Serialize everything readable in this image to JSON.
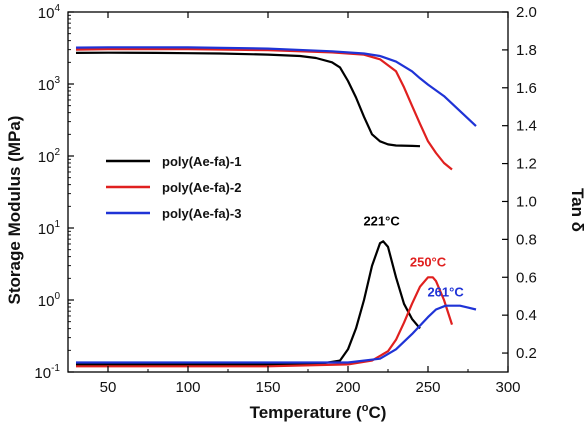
{
  "chart_data": {
    "type": "line",
    "xlabel": "Temperature (",
    "xlabel_sup": "o",
    "xlabel_end": "C)",
    "ylabel_left": "Storage Modulus (MPa)",
    "ylabel_right": "Tan δ",
    "x_ticks": [
      "50",
      "100",
      "150",
      "200",
      "250",
      "300"
    ],
    "x_tick_values": [
      50,
      100,
      150,
      200,
      250,
      300
    ],
    "xlim": [
      25,
      300
    ],
    "y_left_scale": "log",
    "y_left_ticks": [
      {
        "base": "10",
        "exp": "4",
        "value": 10000
      },
      {
        "base": "10",
        "exp": "3",
        "value": 1000
      },
      {
        "base": "10",
        "exp": "2",
        "value": 100
      },
      {
        "base": "10",
        "exp": "1",
        "value": 10
      },
      {
        "base": "10",
        "exp": "0",
        "value": 1
      },
      {
        "base": "10",
        "exp": "-1",
        "value": 0.1
      }
    ],
    "y_left_lim": [
      0.1,
      10000
    ],
    "y_right_ticks": [
      "2.0",
      "1.8",
      "1.6",
      "1.4",
      "1.2",
      "1.0",
      "0.8",
      "0.6",
      "0.4",
      "0.2"
    ],
    "y_right_tick_values": [
      2.0,
      1.8,
      1.6,
      1.4,
      1.2,
      1.0,
      0.8,
      0.6,
      0.4,
      0.2
    ],
    "y_right_lim": [
      0.1,
      2.0
    ],
    "legend_position": "left-middle",
    "grid": false,
    "series": [
      {
        "name": "poly(Ae-fa)-1",
        "color": "#000000",
        "storage_modulus": {
          "x": [
            30,
            50,
            80,
            100,
            120,
            150,
            170,
            180,
            190,
            195,
            200,
            205,
            210,
            215,
            220,
            225,
            230,
            240,
            245
          ],
          "y": [
            2700,
            2720,
            2700,
            2680,
            2650,
            2560,
            2450,
            2300,
            2000,
            1700,
            1100,
            650,
            350,
            200,
            160,
            145,
            140,
            138,
            137
          ]
        },
        "tan_delta": {
          "x": [
            30,
            100,
            150,
            180,
            195,
            200,
            205,
            210,
            215,
            220,
            222,
            225,
            230,
            235,
            240,
            245
          ],
          "y": [
            0.14,
            0.14,
            0.14,
            0.14,
            0.16,
            0.22,
            0.33,
            0.48,
            0.66,
            0.78,
            0.79,
            0.76,
            0.6,
            0.46,
            0.38,
            0.33
          ]
        }
      },
      {
        "name": "poly(Ae-fa)-2",
        "color": "#e0201f",
        "storage_modulus": {
          "x": [
            30,
            50,
            100,
            150,
            190,
            210,
            220,
            230,
            235,
            240,
            245,
            250,
            255,
            260,
            265
          ],
          "y": [
            3000,
            3050,
            3050,
            2950,
            2750,
            2550,
            2200,
            1500,
            900,
            500,
            280,
            160,
            110,
            80,
            65
          ]
        },
        "tan_delta": {
          "x": [
            30,
            100,
            150,
            200,
            215,
            225,
            230,
            235,
            240,
            245,
            250,
            253,
            255,
            260,
            265
          ],
          "y": [
            0.13,
            0.13,
            0.13,
            0.14,
            0.16,
            0.21,
            0.27,
            0.36,
            0.46,
            0.55,
            0.6,
            0.6,
            0.58,
            0.48,
            0.35
          ]
        }
      },
      {
        "name": "poly(Ae-fa)-3",
        "color": "#1f33d6",
        "storage_modulus": {
          "x": [
            30,
            50,
            100,
            150,
            190,
            210,
            220,
            230,
            240,
            245,
            250,
            260,
            270,
            280
          ],
          "y": [
            3200,
            3230,
            3220,
            3100,
            2850,
            2650,
            2450,
            2050,
            1500,
            1200,
            980,
            680,
            420,
            260
          ]
        },
        "tan_delta": {
          "x": [
            30,
            100,
            150,
            200,
            220,
            230,
            240,
            250,
            255,
            261,
            265,
            270,
            275,
            280
          ],
          "y": [
            0.15,
            0.15,
            0.15,
            0.15,
            0.17,
            0.22,
            0.3,
            0.39,
            0.43,
            0.45,
            0.45,
            0.45,
            0.44,
            0.43
          ]
        }
      }
    ],
    "annotations": [
      {
        "text": "221°C",
        "color": "#000000",
        "at_x": 221,
        "at_tan": 0.79
      },
      {
        "text": "250°C",
        "color": "#e0201f",
        "at_x": 250,
        "at_tan": 0.6
      },
      {
        "text": "261°C",
        "color": "#1f33d6",
        "at_x": 261,
        "at_tan": 0.45
      }
    ]
  }
}
